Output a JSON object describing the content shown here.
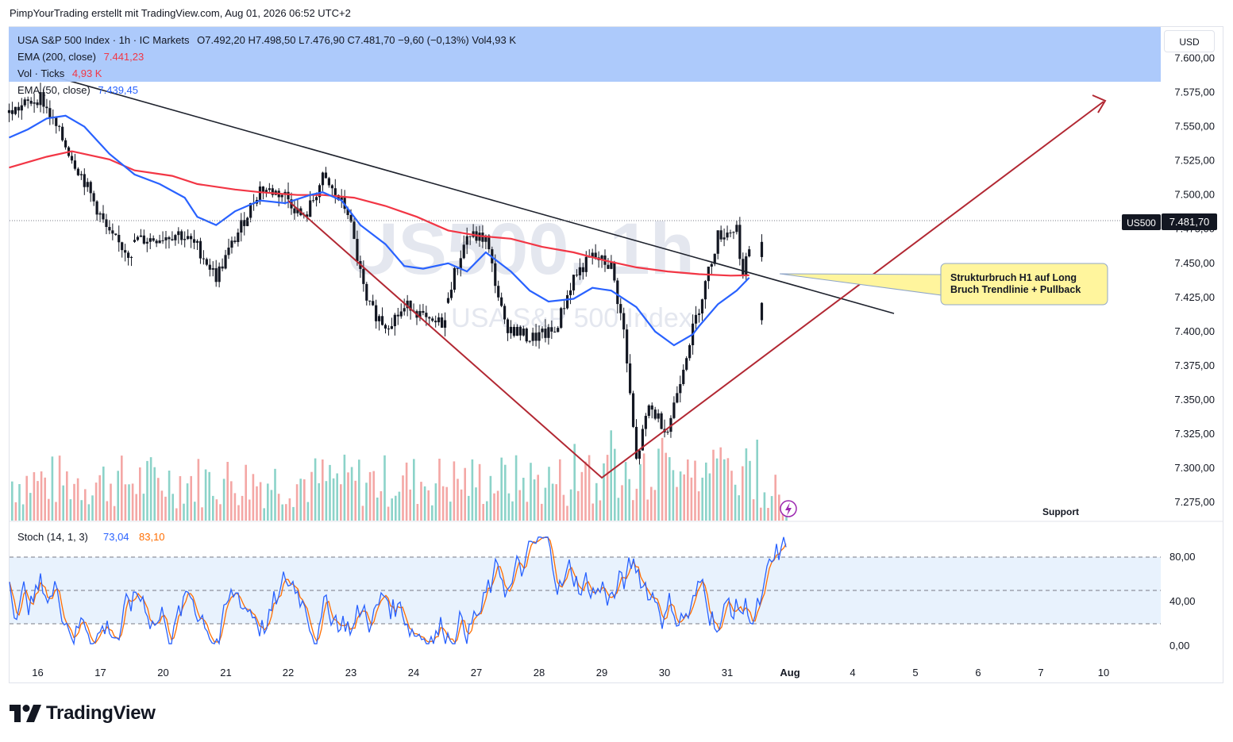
{
  "header": {
    "attribution": "PimpYourTrading erstellt mit TradingView.com, Aug 01, 2026 06:52 UTC+2"
  },
  "legend": {
    "symbol_line": "USA S&P 500 Index · 1h · IC Markets",
    "ohlc": "O7.492,20  H7.498,50  L7.476,90  C7.481,70  −9,60 (−0,13%)  Vol4,93 K",
    "ema200_label": "EMA (200, close)",
    "ema200_value": "7.441,23",
    "vol_label": "Vol · Ticks",
    "vol_value": "4,93 K",
    "ema50_label": "EMA (50, close)",
    "ema50_value": "7.439,45"
  },
  "currency_button": "USD",
  "price_tag": {
    "symbol": "US500",
    "value": "7.481,70"
  },
  "watermark": {
    "symbol": "US500, 1h",
    "name": "USA S&P 500 Index"
  },
  "annotations": {
    "callout": "Strukturbruch H1 auf Long\nBruch Trendlinie + Pullback",
    "support": "Support"
  },
  "stoch": {
    "label": "Stoch (14, 1, 3)",
    "k_value": "73,04",
    "d_value": "83,10"
  },
  "footer": {
    "brand": "TradingView"
  },
  "colors": {
    "up": "#26a69a",
    "down": "#ef5350",
    "ema200": "#f23645",
    "ema50": "#2962ff",
    "trendline": "#1e222d",
    "pattern": "#b22833",
    "stoch_k": "#2962ff",
    "stoch_d": "#ff6d00",
    "legend_bg": "#a9c7fb",
    "callout_bg": "#fff59d"
  },
  "chart_data": [
    {
      "type": "candlestick",
      "title": "USA S&P 500 Index · 1h · IC Markets",
      "x_ticks": [
        "16",
        "17",
        "20",
        "21",
        "22",
        "23",
        "24",
        "27",
        "28",
        "29",
        "30",
        "31",
        "Aug",
        "4",
        "5",
        "6",
        "7",
        "10"
      ],
      "y_ticks": [
        "7.600,00",
        "7.575,00",
        "7.550,00",
        "7.525,00",
        "7.500,00",
        "7.475,00",
        "7.450,00",
        "7.425,00",
        "7.400,00",
        "7.375,00",
        "7.350,00",
        "7.325,00",
        "7.300,00",
        "7.275,00"
      ],
      "ylim": [
        7265,
        7612
      ],
      "last_price": 7481.7,
      "series": [
        {
          "name": "EMA (200, close)",
          "x": [
            16.0,
            16.6,
            17.0,
            17.6,
            20.0,
            20.6,
            21.0,
            21.6,
            22.0,
            22.6,
            23.0,
            23.5,
            24.0,
            24.5,
            27.0,
            27.5,
            28.0,
            28.5,
            29.0,
            29.5,
            30.0,
            30.5,
            31.0,
            31.5,
            31.8
          ],
          "values": [
            7520,
            7528,
            7532,
            7526,
            7518,
            7514,
            7508,
            7504,
            7502,
            7500,
            7500,
            7498,
            7492,
            7484,
            7474,
            7470,
            7468,
            7462,
            7458,
            7452,
            7447,
            7444,
            7442,
            7441,
            7441.23
          ]
        },
        {
          "name": "EMA (50, close)",
          "x": [
            16.0,
            16.3,
            16.6,
            16.9,
            17.2,
            17.6,
            20.0,
            20.4,
            20.8,
            21.0,
            21.3,
            21.6,
            22.0,
            22.4,
            22.8,
            23.0,
            23.3,
            23.6,
            24.0,
            24.3,
            24.6,
            27.0,
            27.3,
            27.6,
            28.0,
            28.3,
            28.6,
            29.0,
            29.3,
            29.6,
            30.0,
            30.3,
            30.6,
            30.9,
            31.0,
            31.3,
            31.6,
            31.8
          ],
          "values": [
            7542,
            7548,
            7556,
            7558,
            7550,
            7530,
            7515,
            7508,
            7498,
            7484,
            7478,
            7488,
            7496,
            7494,
            7500,
            7502,
            7496,
            7478,
            7464,
            7448,
            7446,
            7450,
            7444,
            7458,
            7444,
            7430,
            7422,
            7424,
            7432,
            7430,
            7418,
            7400,
            7390,
            7398,
            7404,
            7420,
            7430,
            7439.45
          ]
        }
      ],
      "volume_label": "Vol · Ticks"
    },
    {
      "type": "line",
      "title": "Stoch (14, 1, 3)",
      "y_ticks": [
        "80,00",
        "40,00",
        "0,00"
      ],
      "ylim": [
        0,
        100
      ],
      "band": [
        20,
        80
      ],
      "series": [
        {
          "name": "%K",
          "last": 73.04
        },
        {
          "name": "%D",
          "last": 83.1
        }
      ]
    }
  ]
}
